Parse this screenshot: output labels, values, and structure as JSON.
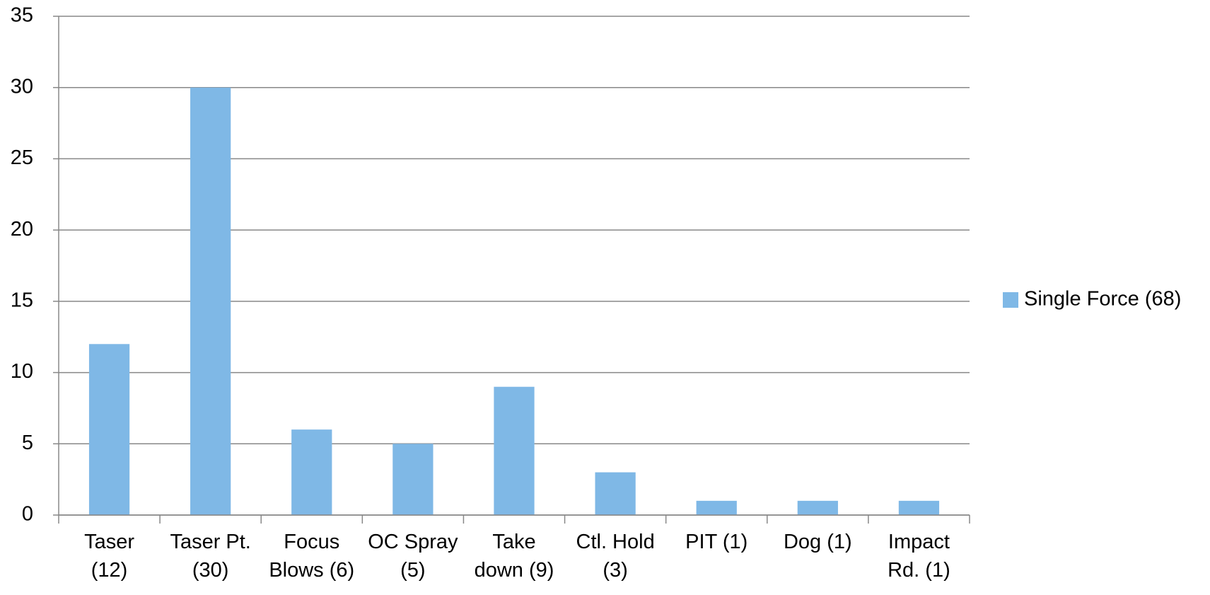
{
  "chart_data": {
    "type": "bar",
    "categories": [
      "Taser\n(12)",
      "Taser Pt.\n(30)",
      "Focus\nBlows (6)",
      "OC Spray\n(5)",
      "Take\ndown (9)",
      "Ctl. Hold\n(3)",
      "PIT (1)",
      "Dog (1)",
      "Impact\nRd. (1)"
    ],
    "series": [
      {
        "name": "Single Force (68)",
        "color": "#7fb8e6",
        "values": [
          12,
          30,
          6,
          5,
          9,
          3,
          1,
          1,
          1
        ]
      }
    ],
    "ylim": [
      0,
      35
    ],
    "yticks": [
      0,
      5,
      10,
      15,
      20,
      25,
      30,
      35
    ],
    "grid": true,
    "legend": "right"
  }
}
